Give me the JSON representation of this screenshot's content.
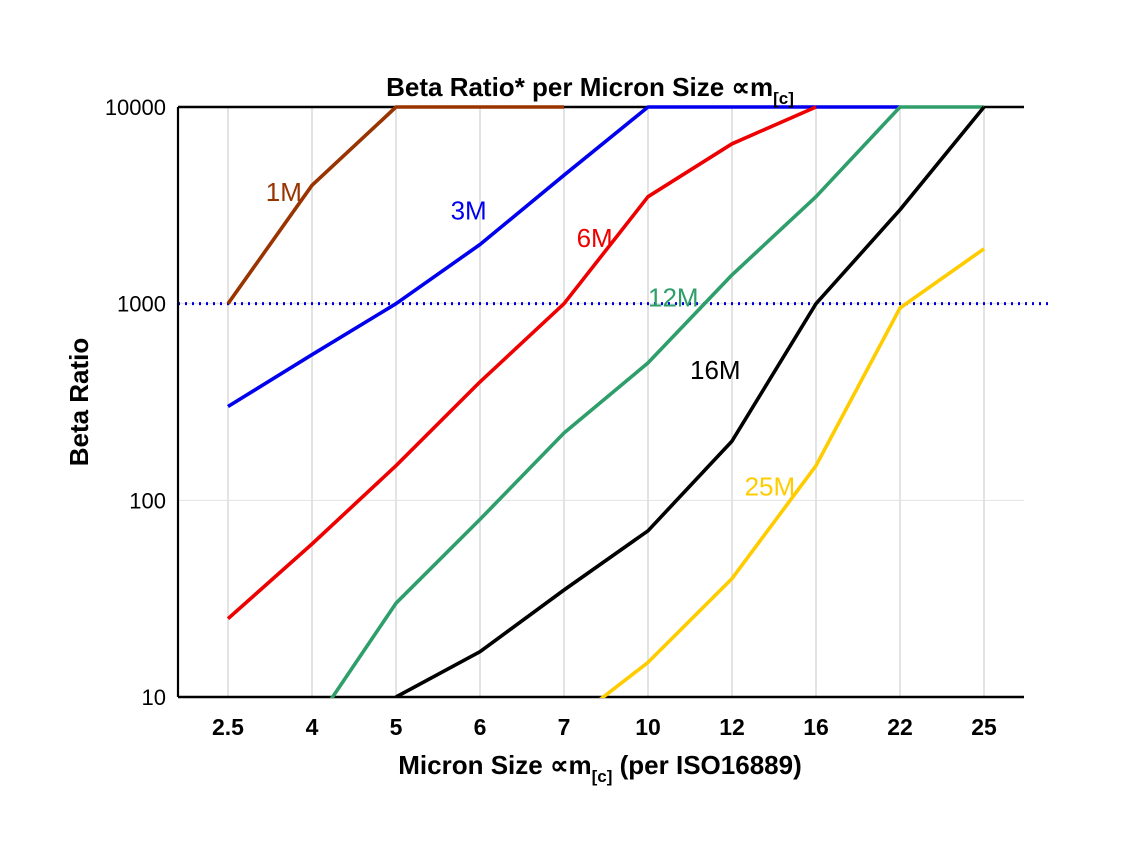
{
  "title": {
    "pre": "Beta Ratio* per Micron Size ∝m",
    "sub": "[c]"
  },
  "x_axis_label": {
    "pre": "Micron Size ∝m",
    "sub": "[c]",
    "post": " (per ISO16889)"
  },
  "y_axis_label": "Beta Ratio",
  "chart_data": {
    "type": "line",
    "title": "Beta Ratio* per Micron Size ∝m[c]",
    "xlabel": "Micron Size ∝m[c] (per ISO16889)",
    "ylabel": "Beta Ratio",
    "y_scale": "log",
    "ylim": [
      10,
      10000
    ],
    "y_ticks": [
      "10",
      "100",
      "1000",
      "10000"
    ],
    "y_gridlines": [
      100,
      1000
    ],
    "grid": "vertical-per-category",
    "categories": [
      "2.5",
      "4",
      "5",
      "6",
      "7",
      "10",
      "12",
      "16",
      "22",
      "25"
    ],
    "series": [
      {
        "name": "1M",
        "color": "#993300",
        "values": [
          1000,
          4000,
          10000,
          10000,
          10000,
          null,
          null,
          null,
          null,
          null
        ]
      },
      {
        "name": "3M",
        "color": "#0000EE",
        "values": [
          300,
          550,
          1000,
          2000,
          4500,
          10000,
          10000,
          10000,
          10000,
          null
        ]
      },
      {
        "name": "6M",
        "color": "#EE0000",
        "values": [
          25,
          60,
          150,
          400,
          1000,
          3500,
          6500,
          10000,
          null,
          null
        ]
      },
      {
        "name": "12M",
        "color": "#2E9E6B",
        "values": [
          null,
          7,
          30,
          80,
          220,
          500,
          1400,
          3500,
          10000,
          10000
        ]
      },
      {
        "name": "16M",
        "color": "#000000",
        "values": [
          null,
          null,
          10,
          17,
          35,
          70,
          200,
          1000,
          3000,
          10000
        ]
      },
      {
        "name": "25M",
        "color": "#FFCC00",
        "values": [
          null,
          null,
          null,
          null,
          7,
          15,
          40,
          150,
          950,
          1900
        ]
      }
    ],
    "ref_line": {
      "value": 1000,
      "color": "#0000DD",
      "style": "dotted"
    },
    "annotations": [
      {
        "text": "1M",
        "color": "#993300",
        "xi": 0.45,
        "value": 3600
      },
      {
        "text": "3M",
        "color": "#0000EE",
        "xi": 2.65,
        "value": 2900
      },
      {
        "text": "6M",
        "color": "#EE0000",
        "xi": 4.15,
        "value": 2100
      },
      {
        "text": "12M",
        "color": "#2E9E6B",
        "xi": 5.0,
        "value": 1050
      },
      {
        "text": "16M",
        "color": "#000000",
        "xi": 5.5,
        "value": 450
      },
      {
        "text": "25M",
        "color": "#FFCC00",
        "xi": 6.15,
        "value": 115
      }
    ],
    "legend_position": "inline-labels"
  }
}
